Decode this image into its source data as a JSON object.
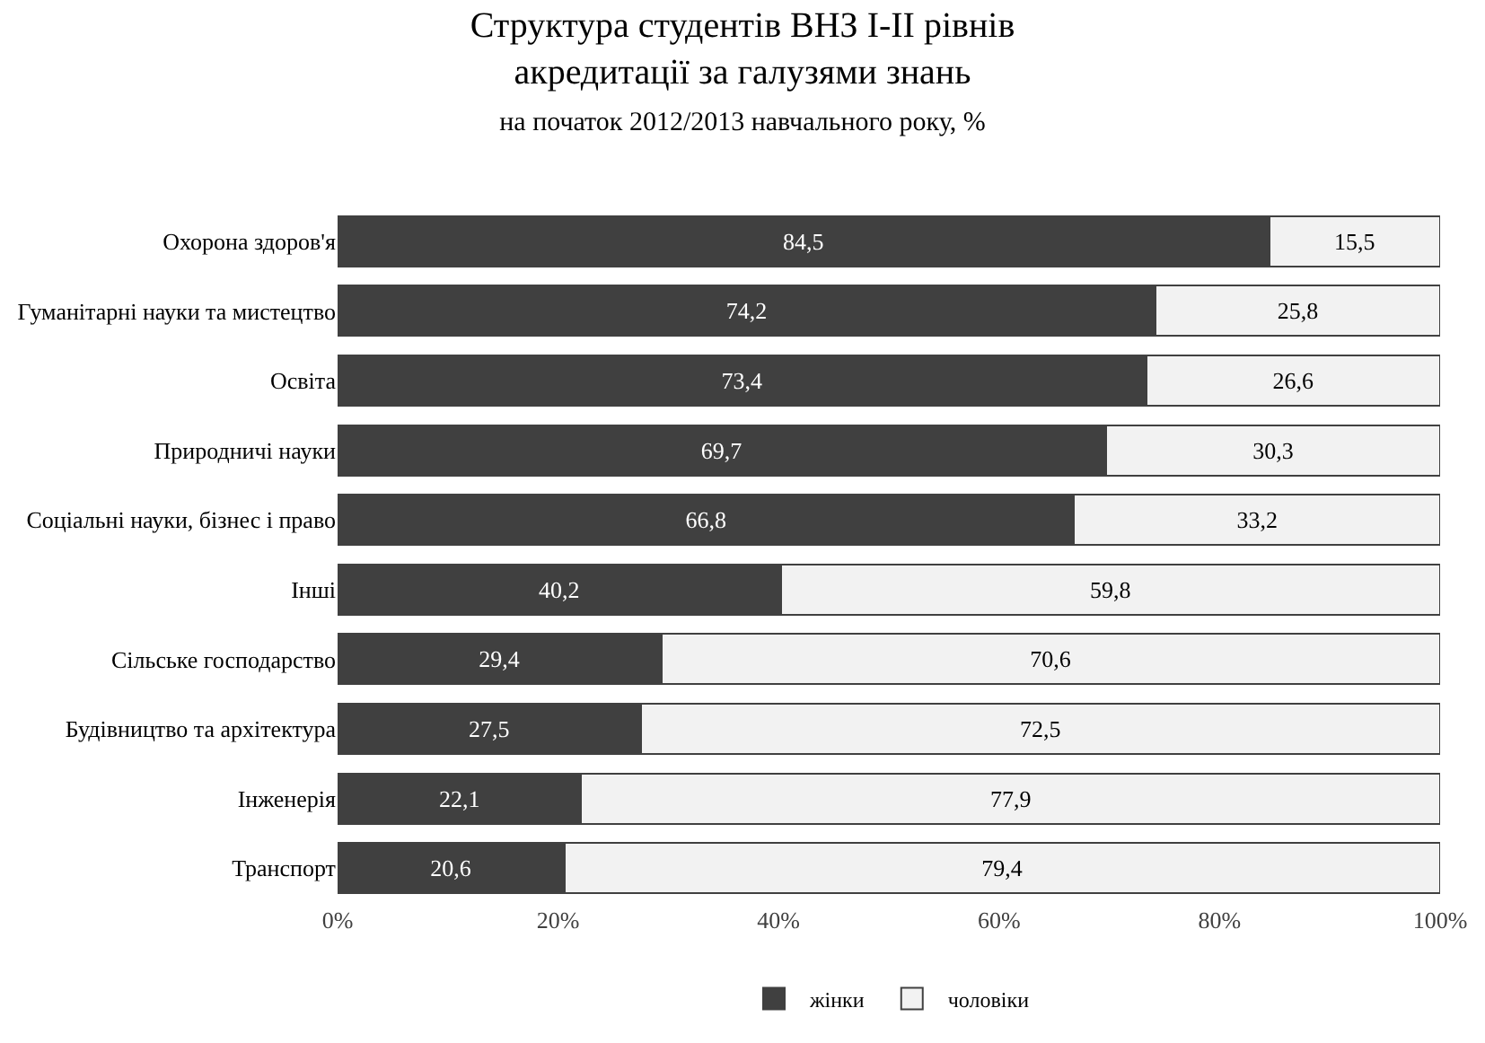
{
  "chart_data": {
    "type": "bar",
    "orientation": "horizontal",
    "stacked": true,
    "title": "Структура студентів ВНЗ І-ІІ рівнів акредитації за галузями знань",
    "subtitle": "на початок 2012/2013 навчального року, %",
    "categories": [
      "Охорона здоров'я",
      "Гуманітарні науки та мистецтво",
      "Освіта",
      "Природничі науки",
      "Соціальні науки, бізнес і право",
      "Інші",
      "Сільське господарство",
      "Будівництво та архітектура",
      "Інженерія",
      "Транспорт"
    ],
    "series": [
      {
        "name": "жінки",
        "color": "#404040",
        "values": [
          84.5,
          74.2,
          73.4,
          69.7,
          66.8,
          40.2,
          29.4,
          27.5,
          22.1,
          20.6
        ],
        "value_labels": [
          "84,5",
          "74,2",
          "73,4",
          "69,7",
          "66,8",
          "40,2",
          "29,4",
          "27,5",
          "22,1",
          "20,6"
        ]
      },
      {
        "name": "чоловіки",
        "color": "#f2f2f2",
        "values": [
          15.5,
          25.8,
          26.6,
          30.3,
          33.2,
          59.8,
          70.6,
          72.5,
          77.9,
          79.4
        ],
        "value_labels": [
          "15,5",
          "25,8",
          "26,6",
          "30,3",
          "33,2",
          "59,8",
          "70,6",
          "72,5",
          "77,9",
          "79,4"
        ]
      }
    ],
    "xlim": [
      0,
      100
    ],
    "xticks": [
      {
        "value": 0,
        "label": "0%"
      },
      {
        "value": 20,
        "label": "20%"
      },
      {
        "value": 40,
        "label": "40%"
      },
      {
        "value": 60,
        "label": "60%"
      },
      {
        "value": 80,
        "label": "80%"
      },
      {
        "value": 100,
        "label": "100%"
      }
    ],
    "legend": "bottom"
  }
}
